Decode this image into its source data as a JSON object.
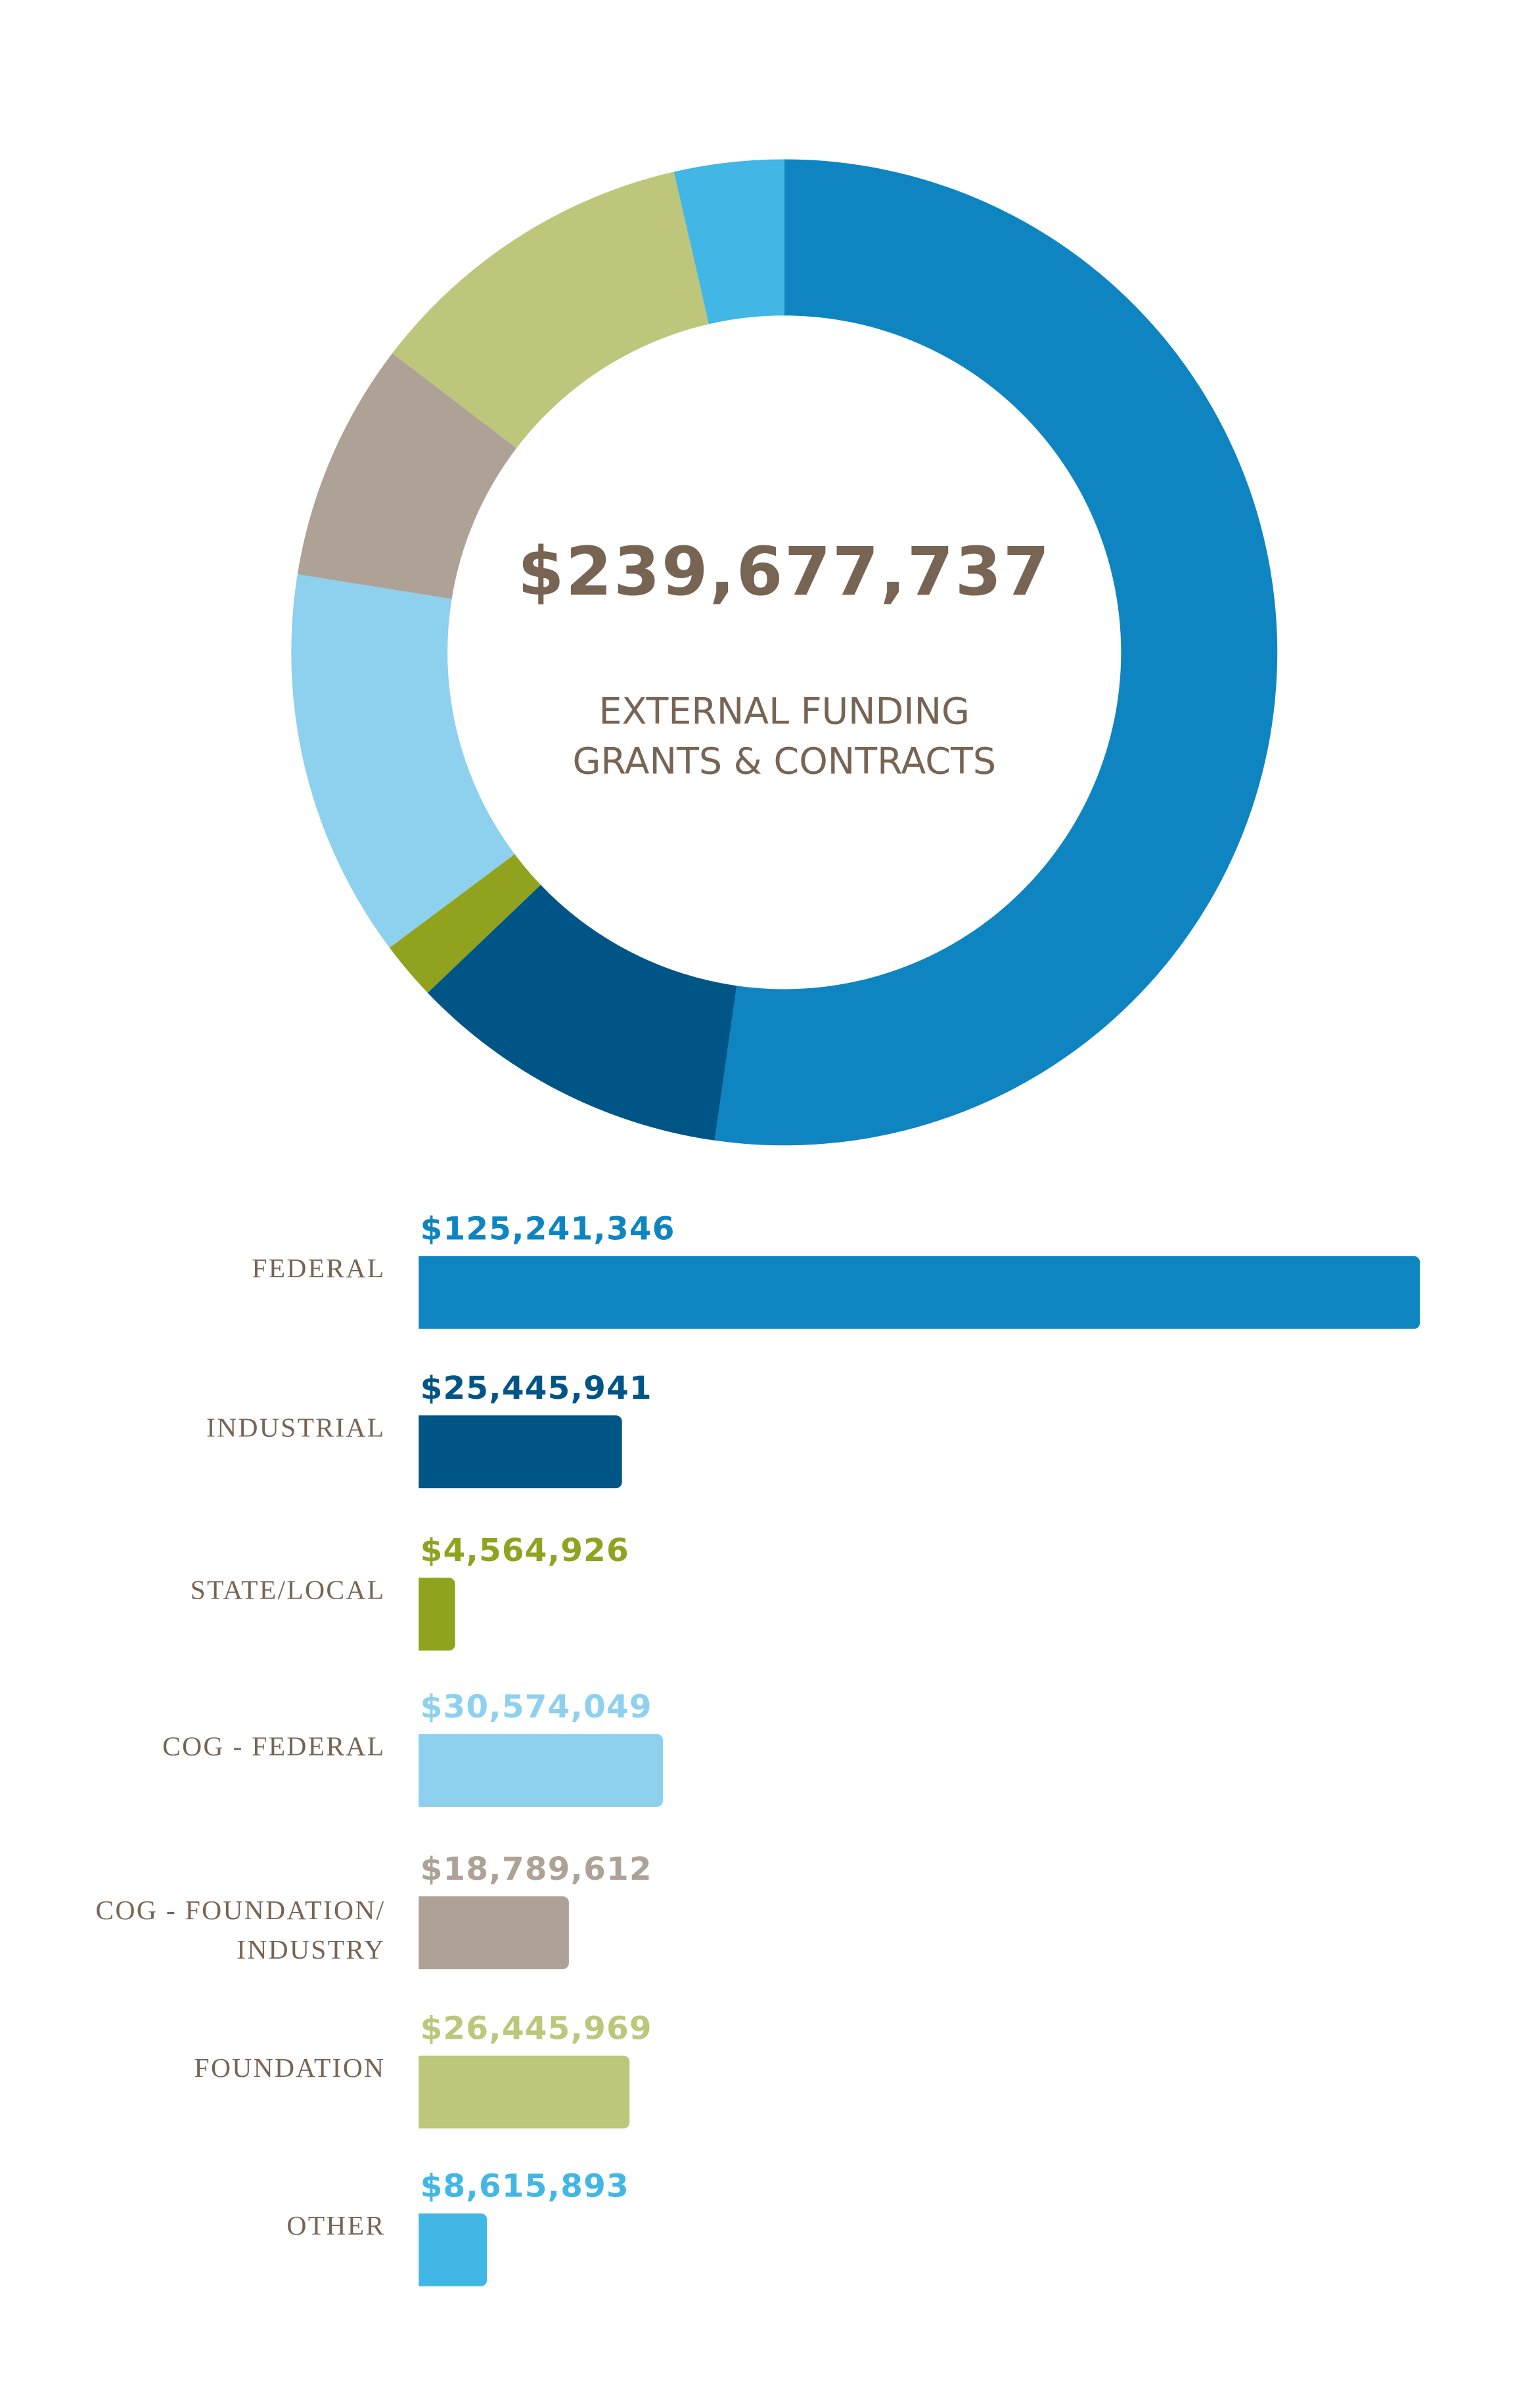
{
  "chart_data": [
    {
      "type": "pie",
      "variant": "donut",
      "title": "$239,677,737",
      "subtitle": [
        "EXTERNAL FUNDING",
        "GRANTS & CONTRACTS"
      ],
      "total": 239677737,
      "start": "top, clockwise",
      "categories": [
        "FEDERAL",
        "INDUSTRIAL",
        "STATE/LOCAL",
        "COG - FEDERAL",
        "COG - FOUNDATION/ INDUSTRY",
        "FOUNDATION",
        "OTHER"
      ],
      "values": [
        125241346,
        25445941,
        4564926,
        30574049,
        18789612,
        26445969,
        8615893
      ],
      "colors": [
        "#0e85c1",
        "#005587",
        "#91a21f",
        "#8dd1ee",
        "#aea196",
        "#bdc67a",
        "#42b6e5"
      ]
    },
    {
      "type": "bar",
      "orientation": "horizontal",
      "categories": [
        {
          "label": "FEDERAL",
          "value_label": "$125,241,346",
          "value": 125241346,
          "color": "#0e85c1"
        },
        {
          "label": "INDUSTRIAL",
          "value_label": "$25,445,941",
          "value": 25445941,
          "color": "#005587"
        },
        {
          "label": "STATE/LOCAL",
          "value_label": "$4,564,926",
          "value": 4564926,
          "color": "#91a21f"
        },
        {
          "label": "COG - FEDERAL",
          "value_label": "$30,574,049",
          "value": 30574049,
          "color": "#8dd1ee"
        },
        {
          "label": "COG - FOUNDATION/",
          "label2": "INDUSTRY",
          "value_label": "$18,789,612",
          "value": 18789612,
          "color": "#aea196"
        },
        {
          "label": "FOUNDATION",
          "value_label": "$26,445,969",
          "value": 26445969,
          "color": "#bdc67a"
        },
        {
          "label": "OTHER",
          "value_label": "$8,615,893",
          "value": 8615893,
          "color": "#42b6e5"
        }
      ]
    }
  ]
}
